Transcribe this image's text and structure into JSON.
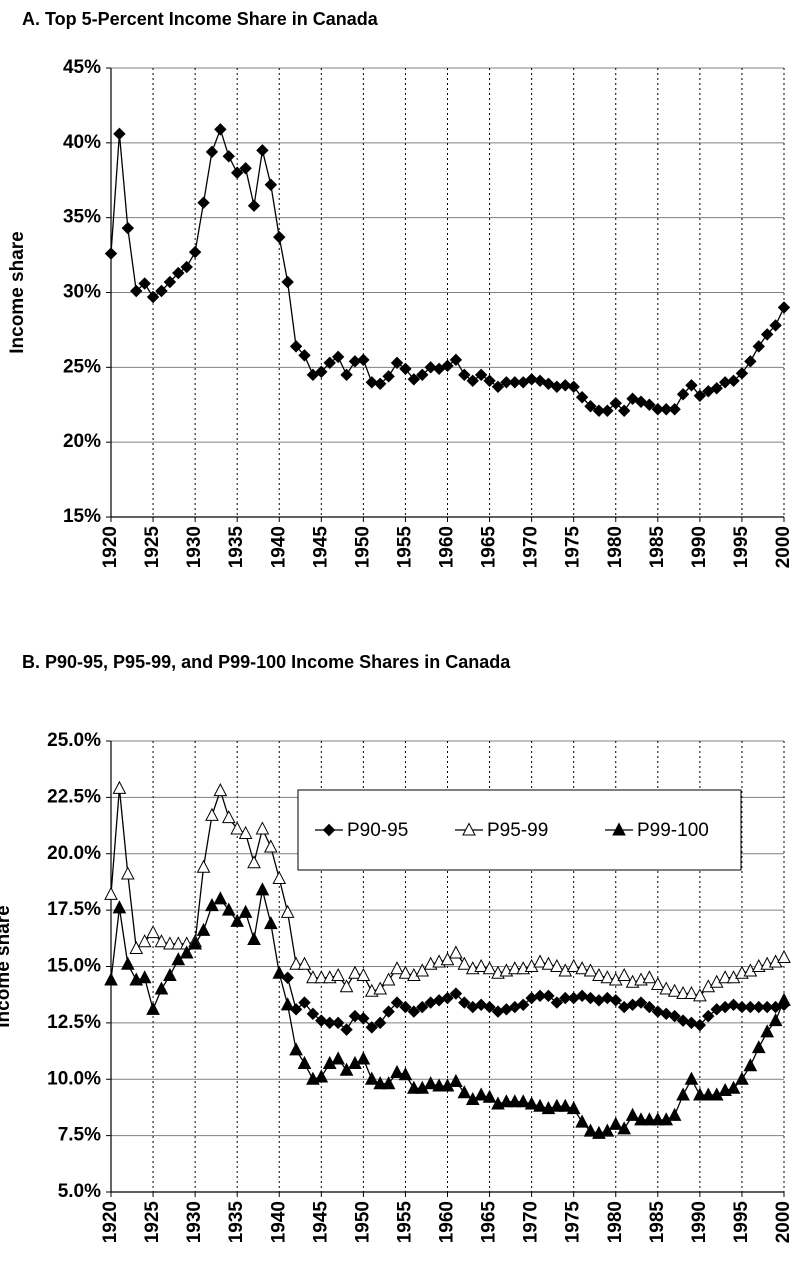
{
  "chart_data": [
    {
      "type": "line",
      "title": "A. Top 5-Percent Income Share in Canada",
      "y_label": "Income share",
      "x": [
        1920,
        1921,
        1922,
        1923,
        1924,
        1925,
        1926,
        1927,
        1928,
        1929,
        1930,
        1931,
        1932,
        1933,
        1934,
        1935,
        1936,
        1937,
        1938,
        1939,
        1940,
        1941,
        1942,
        1943,
        1944,
        1945,
        1946,
        1947,
        1948,
        1949,
        1950,
        1951,
        1952,
        1953,
        1954,
        1955,
        1956,
        1957,
        1958,
        1959,
        1960,
        1961,
        1962,
        1963,
        1964,
        1965,
        1966,
        1967,
        1968,
        1969,
        1970,
        1971,
        1972,
        1973,
        1974,
        1975,
        1976,
        1977,
        1978,
        1979,
        1980,
        1981,
        1982,
        1983,
        1984,
        1985,
        1986,
        1987,
        1988,
        1989,
        1990,
        1991,
        1992,
        1993,
        1994,
        1995,
        1996,
        1997,
        1998,
        1999,
        2000
      ],
      "series": [
        {
          "color": "#000000",
          "marker": "diamond",
          "values": [
            32.6,
            40.6,
            34.3,
            30.1,
            30.6,
            29.7,
            30.1,
            30.7,
            31.3,
            31.7,
            32.7,
            36.0,
            39.4,
            40.9,
            39.1,
            38.0,
            38.3,
            35.8,
            39.5,
            37.2,
            33.7,
            30.7,
            26.4,
            25.8,
            24.5,
            24.7,
            25.3,
            25.7,
            24.5,
            25.4,
            25.5,
            24.0,
            23.9,
            24.4,
            25.3,
            24.9,
            24.2,
            24.5,
            25.0,
            24.9,
            25.1,
            25.5,
            24.5,
            24.1,
            24.5,
            24.1,
            23.7,
            24.0,
            24.0,
            24.0,
            24.2,
            24.1,
            23.9,
            23.7,
            23.8,
            23.7,
            23.0,
            22.4,
            22.1,
            22.1,
            22.6,
            22.1,
            22.9,
            22.7,
            22.5,
            22.2,
            22.2,
            22.2,
            23.2,
            23.8,
            23.1,
            23.4,
            23.6,
            24.0,
            24.1,
            24.6,
            25.4,
            26.4,
            27.2,
            27.8,
            29.0
          ]
        }
      ],
      "xlim": [
        1920,
        2000
      ],
      "xticks": [
        1920,
        1925,
        1930,
        1935,
        1940,
        1945,
        1950,
        1955,
        1960,
        1965,
        1970,
        1975,
        1980,
        1985,
        1990,
        1995,
        2000
      ],
      "ylim": [
        15,
        45
      ],
      "yticks": [
        {
          "value": 15,
          "label": "15%"
        },
        {
          "value": 20,
          "label": "20%"
        },
        {
          "value": 25,
          "label": "25%"
        },
        {
          "value": 30,
          "label": "30%"
        },
        {
          "value": 35,
          "label": "35%"
        },
        {
          "value": 40,
          "label": "40%"
        },
        {
          "value": 45,
          "label": "45%"
        }
      ],
      "grid": true
    },
    {
      "type": "line",
      "title": "B. P90-95, P95-99, and P99-100 Income Shares in Canada",
      "y_label": "Income share",
      "x": [
        1920,
        1921,
        1922,
        1923,
        1924,
        1925,
        1926,
        1927,
        1928,
        1929,
        1930,
        1931,
        1932,
        1933,
        1934,
        1935,
        1936,
        1937,
        1938,
        1939,
        1940,
        1941,
        1942,
        1943,
        1944,
        1945,
        1946,
        1947,
        1948,
        1949,
        1950,
        1951,
        1952,
        1953,
        1954,
        1955,
        1956,
        1957,
        1958,
        1959,
        1960,
        1961,
        1962,
        1963,
        1964,
        1965,
        1966,
        1967,
        1968,
        1969,
        1970,
        1971,
        1972,
        1973,
        1974,
        1975,
        1976,
        1977,
        1978,
        1979,
        1980,
        1981,
        1982,
        1983,
        1984,
        1985,
        1986,
        1987,
        1988,
        1989,
        1990,
        1991,
        1992,
        1993,
        1994,
        1995,
        1996,
        1997,
        1998,
        1999,
        2000
      ],
      "series": [
        {
          "name": "P90-95",
          "color": "#000000",
          "marker": "diamond",
          "values": [
            null,
            null,
            null,
            null,
            null,
            null,
            null,
            null,
            null,
            null,
            null,
            null,
            null,
            null,
            null,
            null,
            null,
            null,
            null,
            null,
            null,
            14.5,
            13.1,
            13.4,
            12.9,
            12.6,
            12.5,
            12.5,
            12.2,
            12.8,
            12.7,
            12.3,
            12.5,
            13.0,
            13.4,
            13.2,
            13.0,
            13.2,
            13.4,
            13.5,
            13.6,
            13.8,
            13.4,
            13.2,
            13.3,
            13.2,
            13.0,
            13.1,
            13.2,
            13.3,
            13.6,
            13.7,
            13.7,
            13.4,
            13.6,
            13.6,
            13.7,
            13.6,
            13.5,
            13.6,
            13.5,
            13.2,
            13.3,
            13.4,
            13.2,
            13.0,
            12.9,
            12.8,
            12.6,
            12.5,
            12.4,
            12.8,
            13.1,
            13.2,
            13.3,
            13.2,
            13.2,
            13.2,
            13.2,
            13.2,
            13.3
          ]
        },
        {
          "name": "P95-99",
          "color": "#000000",
          "marker": "triangle-open",
          "values": [
            18.2,
            22.9,
            19.1,
            15.8,
            16.1,
            16.5,
            16.1,
            16.0,
            16.0,
            16.0,
            16.1,
            19.4,
            21.7,
            22.8,
            21.6,
            21.1,
            20.9,
            19.6,
            21.1,
            20.3,
            18.9,
            17.4,
            15.1,
            15.1,
            14.5,
            14.5,
            14.5,
            14.6,
            14.1,
            14.7,
            14.6,
            13.9,
            14.0,
            14.4,
            14.9,
            14.7,
            14.6,
            14.8,
            15.1,
            15.2,
            15.3,
            15.6,
            15.1,
            14.9,
            15.0,
            14.9,
            14.7,
            14.8,
            14.9,
            14.9,
            15.0,
            15.2,
            15.1,
            15.0,
            14.8,
            15.0,
            14.9,
            14.8,
            14.6,
            14.5,
            14.4,
            14.6,
            14.3,
            14.4,
            14.5,
            14.2,
            14.0,
            13.9,
            13.8,
            13.8,
            13.7,
            14.1,
            14.3,
            14.5,
            14.5,
            14.7,
            14.8,
            15.0,
            15.1,
            15.2,
            15.4
          ]
        },
        {
          "name": "P99-100",
          "color": "#000000",
          "marker": "triangle",
          "values": [
            14.4,
            17.6,
            15.1,
            14.4,
            14.5,
            13.1,
            14.0,
            14.6,
            15.3,
            15.6,
            16.0,
            16.6,
            17.7,
            18.0,
            17.5,
            17.0,
            17.4,
            16.2,
            18.4,
            16.9,
            14.7,
            13.3,
            11.3,
            10.7,
            10.0,
            10.1,
            10.7,
            10.9,
            10.4,
            10.7,
            10.9,
            10.0,
            9.8,
            9.8,
            10.3,
            10.2,
            9.6,
            9.6,
            9.8,
            9.7,
            9.7,
            9.9,
            9.4,
            9.1,
            9.3,
            9.2,
            8.9,
            9.0,
            9.0,
            9.0,
            8.9,
            8.8,
            8.7,
            8.8,
            8.8,
            8.7,
            8.1,
            7.7,
            7.6,
            7.7,
            8.0,
            7.8,
            8.4,
            8.2,
            8.2,
            8.2,
            8.2,
            8.4,
            9.3,
            10.0,
            9.3,
            9.3,
            9.3,
            9.5,
            9.6,
            10.0,
            10.6,
            11.4,
            12.1,
            12.6,
            13.5
          ]
        }
      ],
      "xlim": [
        1920,
        2000
      ],
      "xticks": [
        1920,
        1925,
        1930,
        1935,
        1940,
        1945,
        1950,
        1955,
        1960,
        1965,
        1970,
        1975,
        1980,
        1985,
        1990,
        1995,
        2000
      ],
      "ylim": [
        5,
        25
      ],
      "yticks": [
        {
          "value": 5,
          "label": "5.0%"
        },
        {
          "value": 7.5,
          "label": "7.5%"
        },
        {
          "value": 10,
          "label": "10.0%"
        },
        {
          "value": 12.5,
          "label": "12.5%"
        },
        {
          "value": 15,
          "label": "15.0%"
        },
        {
          "value": 17.5,
          "label": "17.5%"
        },
        {
          "value": 20,
          "label": "20.0%"
        },
        {
          "value": 22.5,
          "label": "22.5%"
        },
        {
          "value": 25,
          "label": "25.0%"
        }
      ],
      "grid": true,
      "legend": "top-right"
    }
  ]
}
